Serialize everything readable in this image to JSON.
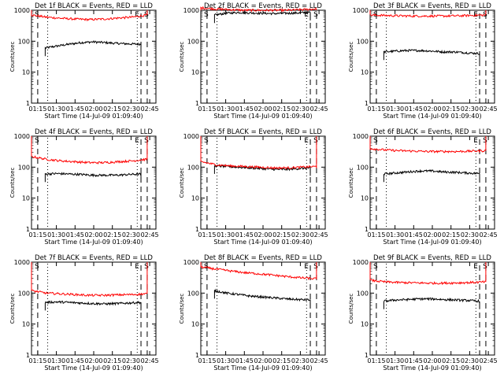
{
  "page": {
    "xlabel": "Start Time (14-Jul-09 01:09:40)",
    "ylabel": "Counts/sec",
    "xticks": [
      "01:15",
      "01:30",
      "01:45",
      "02:00",
      "02:15",
      "02:30",
      "02:45"
    ],
    "yticks": [
      "1",
      "10",
      "100",
      "1000"
    ],
    "letters": {
      "s": "S",
      "e": "E"
    },
    "colors": {
      "events": "#000000",
      "lld": "#ff0000"
    }
  },
  "chart_data": [
    {
      "type": "line",
      "title": "Det 1f BLACK = Events, RED = LLD",
      "ylim": [
        1,
        1000
      ],
      "ylog": true,
      "xlim_minutes": [
        70,
        170
      ],
      "series": [
        {
          "name": "Events",
          "start": 81,
          "end": 158,
          "levels": [
            60,
            70,
            80,
            90,
            95,
            90,
            85,
            82,
            80
          ]
        },
        {
          "name": "LLD",
          "start": 70,
          "end": 163,
          "levels": [
            700,
            600,
            550,
            520,
            500,
            520,
            560,
            600,
            700
          ]
        }
      ],
      "s_markers": [
        75,
        163
      ],
      "e_marker": 158,
      "dotted": [
        83,
        155
      ]
    },
    {
      "type": "line",
      "title": "Det 2f BLACK = Events, RED = LLD",
      "ylim": [
        1,
        1000
      ],
      "ylog": true,
      "xlim_minutes": [
        70,
        170
      ],
      "series": [
        {
          "name": "Events",
          "start": 81,
          "end": 158,
          "levels": [
            700,
            800,
            850,
            820,
            800,
            780,
            800,
            820,
            850
          ]
        },
        {
          "name": "LLD",
          "start": 70,
          "end": 163,
          "levels": [
            1200,
            1100,
            1050,
            1000,
            1000,
            1000,
            1000,
            1050,
            1100
          ]
        }
      ],
      "s_markers": [
        75,
        163
      ],
      "e_marker": 158,
      "dotted": [
        83,
        155
      ]
    },
    {
      "type": "line",
      "title": "Det 3f BLACK = Events, RED = LLD",
      "ylim": [
        1,
        1000
      ],
      "ylog": true,
      "xlim_minutes": [
        70,
        170
      ],
      "series": [
        {
          "name": "Events",
          "start": 81,
          "end": 158,
          "levels": [
            45,
            48,
            50,
            50,
            48,
            45,
            45,
            42,
            40
          ]
        },
        {
          "name": "LLD",
          "start": 70,
          "end": 163,
          "levels": [
            700,
            680,
            660,
            650,
            650,
            650,
            660,
            680,
            700
          ]
        }
      ],
      "s_markers": [
        75,
        163
      ],
      "e_marker": 158,
      "dotted": [
        83,
        155
      ]
    },
    {
      "type": "line",
      "title": "Det 4f BLACK = Events, RED = LLD",
      "ylim": [
        1,
        1000
      ],
      "ylog": true,
      "xlim_minutes": [
        70,
        170
      ],
      "series": [
        {
          "name": "Events",
          "start": 81,
          "end": 158,
          "levels": [
            60,
            62,
            60,
            58,
            55,
            55,
            55,
            58,
            60
          ]
        },
        {
          "name": "LLD",
          "start": 70,
          "end": 163,
          "levels": [
            220,
            180,
            160,
            150,
            140,
            140,
            150,
            160,
            180
          ]
        }
      ],
      "s_markers": [
        75,
        163
      ],
      "e_marker": 158,
      "dotted": [
        83,
        155
      ]
    },
    {
      "type": "line",
      "title": "Det 5f BLACK = Events, RED = LLD",
      "ylim": [
        1,
        1000
      ],
      "ylog": true,
      "xlim_minutes": [
        70,
        170
      ],
      "series": [
        {
          "name": "Events",
          "start": 81,
          "end": 158,
          "levels": [
            110,
            105,
            100,
            95,
            90,
            85,
            85,
            90,
            95
          ]
        },
        {
          "name": "LLD",
          "start": 70,
          "end": 163,
          "levels": [
            150,
            120,
            110,
            105,
            100,
            95,
            95,
            100,
            105
          ]
        }
      ],
      "s_markers": [
        75,
        163
      ],
      "e_marker": 158,
      "dotted": [
        83,
        155
      ]
    },
    {
      "type": "line",
      "title": "Det 6f BLACK = Events, RED = LLD",
      "ylim": [
        1,
        1000
      ],
      "ylog": true,
      "xlim_minutes": [
        70,
        170
      ],
      "series": [
        {
          "name": "Events",
          "start": 81,
          "end": 158,
          "levels": [
            60,
            65,
            70,
            75,
            75,
            70,
            68,
            65,
            62
          ]
        },
        {
          "name": "LLD",
          "start": 70,
          "end": 163,
          "levels": [
            400,
            360,
            340,
            330,
            320,
            320,
            320,
            330,
            340
          ]
        }
      ],
      "s_markers": [
        75,
        163
      ],
      "e_marker": 158,
      "dotted": [
        83,
        155
      ]
    },
    {
      "type": "line",
      "title": "Det 7f BLACK = Events, RED = LLD",
      "ylim": [
        1,
        1000
      ],
      "ylog": true,
      "xlim_minutes": [
        70,
        170
      ],
      "series": [
        {
          "name": "Events",
          "start": 81,
          "end": 158,
          "levels": [
            50,
            52,
            50,
            48,
            46,
            45,
            46,
            48,
            50
          ]
        },
        {
          "name": "LLD",
          "start": 70,
          "end": 163,
          "levels": [
            120,
            100,
            95,
            90,
            85,
            85,
            88,
            90,
            95
          ]
        }
      ],
      "s_markers": [
        75,
        163
      ],
      "e_marker": 158,
      "dotted": [
        83,
        155
      ]
    },
    {
      "type": "line",
      "title": "Det 8f BLACK = Events, RED = LLD",
      "ylim": [
        1,
        1000
      ],
      "ylog": true,
      "xlim_minutes": [
        70,
        170
      ],
      "series": [
        {
          "name": "Events",
          "start": 81,
          "end": 158,
          "levels": [
            120,
            100,
            90,
            80,
            75,
            70,
            65,
            62,
            60
          ]
        },
        {
          "name": "LLD",
          "start": 70,
          "end": 163,
          "levels": [
            700,
            600,
            520,
            460,
            420,
            380,
            340,
            310,
            290
          ]
        }
      ],
      "s_markers": [
        75,
        163
      ],
      "e_marker": 158,
      "dotted": [
        83,
        155
      ]
    },
    {
      "type": "line",
      "title": "Det 9f BLACK = Events, RED = LLD",
      "ylim": [
        1,
        1000
      ],
      "ylog": true,
      "xlim_minutes": [
        70,
        170
      ],
      "series": [
        {
          "name": "Events",
          "start": 81,
          "end": 158,
          "levels": [
            55,
            60,
            62,
            65,
            65,
            62,
            60,
            58,
            55
          ]
        },
        {
          "name": "LLD",
          "start": 70,
          "end": 163,
          "levels": [
            260,
            230,
            220,
            215,
            210,
            210,
            215,
            220,
            230
          ]
        }
      ],
      "s_markers": [
        75,
        163
      ],
      "e_marker": 158,
      "dotted": [
        83,
        155
      ]
    }
  ]
}
